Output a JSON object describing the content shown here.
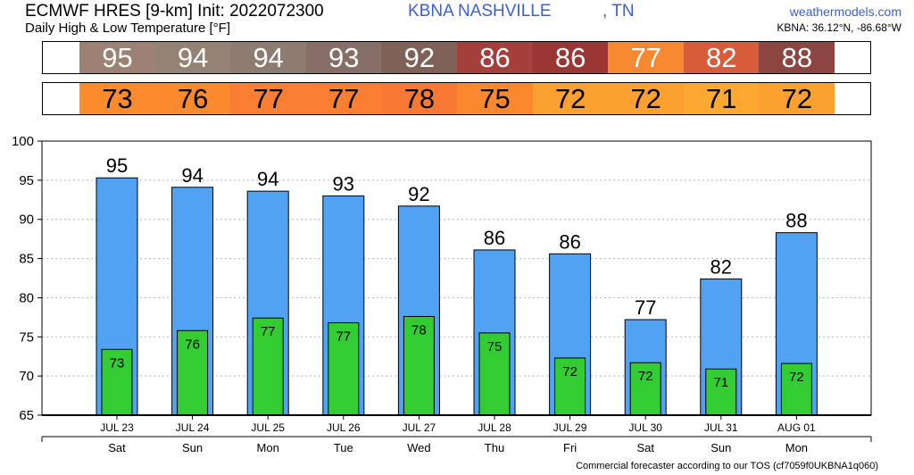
{
  "header": {
    "title": "ECMWF HRES [9-km] Init: 2022072300",
    "subtitle": "Daily High & Low Temperature [°F]",
    "station": "KBNA NASHVILLE",
    "state": ", TN",
    "site": "weathermodels.com",
    "coords": "KBNA: 36.12°N, -86.68°W"
  },
  "footer": "Commercial forecaster according to our TOS (cf7059f0UKBNA1q060)",
  "strips": {
    "high": {
      "values": [
        "95",
        "94",
        "94",
        "93",
        "92",
        "86",
        "86",
        "77",
        "82",
        "88"
      ],
      "colors": [
        "#9c8174",
        "#948275",
        "#8e7c72",
        "#876e68",
        "#7f6158",
        "#a43f3c",
        "#9a3735",
        "#f78830",
        "#d75c3a",
        "#8c4540"
      ]
    },
    "low": {
      "values": [
        "73",
        "76",
        "77",
        "77",
        "78",
        "75",
        "72",
        "72",
        "71",
        "72"
      ],
      "colors": [
        "#fb8b2d",
        "#fb8a2e",
        "#fa7f33",
        "#fa7f33",
        "#f97934",
        "#fb882f",
        "#fca131",
        "#fca131",
        "#fda830",
        "#fca131"
      ]
    }
  },
  "colors": {
    "high_bar": "#52a2f3",
    "low_bar": "#33cc33",
    "grid": "#b5b5b5"
  },
  "chart_data": {
    "type": "bar",
    "title": "",
    "xlabel": "",
    "ylabel": "",
    "ylim": [
      65,
      100
    ],
    "yticks": [
      65,
      70,
      75,
      80,
      85,
      90,
      95,
      100
    ],
    "categories": [
      "JUL 23",
      "JUL 24",
      "JUL 25",
      "JUL 26",
      "JUL 27",
      "JUL 28",
      "JUL 29",
      "JUL 30",
      "JUL 31",
      "AUG 01"
    ],
    "days": [
      "Sat",
      "Sun",
      "Mon",
      "Tue",
      "Wed",
      "Thu",
      "Fri",
      "Sat",
      "Sun",
      "Mon"
    ],
    "grid": "horizontal dotted",
    "series": [
      {
        "values": [
          95.3,
          94.1,
          93.6,
          93.0,
          91.7,
          86.1,
          85.6,
          77.2,
          82.4,
          88.3
        ],
        "labels": [
          "95",
          "94",
          "94",
          "93",
          "92",
          "86",
          "86",
          "77",
          "82",
          "88"
        ]
      },
      {
        "values": [
          73.4,
          75.8,
          77.4,
          76.8,
          77.6,
          75.5,
          72.3,
          71.7,
          70.9,
          71.6
        ],
        "labels": [
          "73",
          "76",
          "77",
          "77",
          "78",
          "75",
          "72",
          "72",
          "71",
          "72"
        ]
      }
    ]
  }
}
